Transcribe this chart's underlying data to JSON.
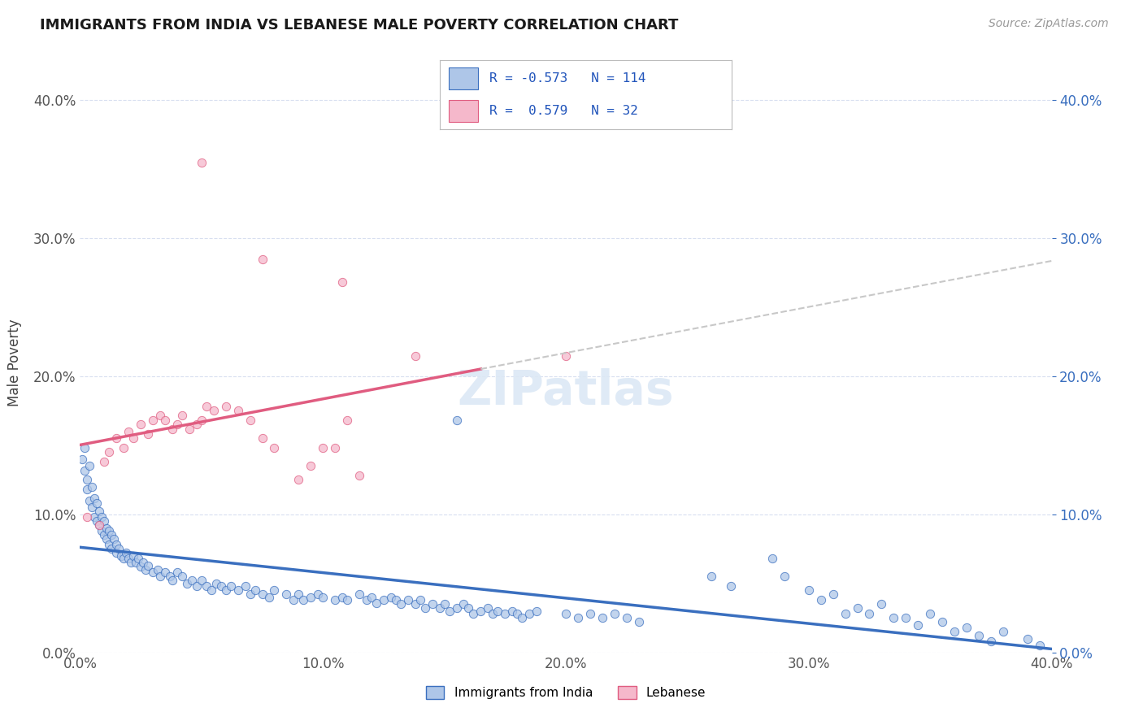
{
  "title": "IMMIGRANTS FROM INDIA VS LEBANESE MALE POVERTY CORRELATION CHART",
  "source": "Source: ZipAtlas.com",
  "ylabel": "Male Poverty",
  "legend_label_1": "Immigrants from India",
  "legend_label_2": "Lebanese",
  "r1": -0.573,
  "n1": 114,
  "r2": 0.579,
  "n2": 32,
  "color_india": "#aec6e8",
  "color_lebanon": "#f5b8cb",
  "line_color_india": "#3a6fbf",
  "line_color_lebanon": "#e05c80",
  "line_color_dashed": "#c8c8c8",
  "background_color": "#ffffff",
  "grid_color": "#d8dff0",
  "xlim": [
    0.0,
    0.4
  ],
  "ylim": [
    0.0,
    0.42
  ],
  "india_scatter": [
    [
      0.001,
      0.14
    ],
    [
      0.002,
      0.148
    ],
    [
      0.002,
      0.132
    ],
    [
      0.003,
      0.125
    ],
    [
      0.003,
      0.118
    ],
    [
      0.004,
      0.135
    ],
    [
      0.004,
      0.11
    ],
    [
      0.005,
      0.12
    ],
    [
      0.005,
      0.105
    ],
    [
      0.006,
      0.112
    ],
    [
      0.006,
      0.098
    ],
    [
      0.007,
      0.108
    ],
    [
      0.007,
      0.095
    ],
    [
      0.008,
      0.102
    ],
    [
      0.008,
      0.092
    ],
    [
      0.009,
      0.098
    ],
    [
      0.009,
      0.088
    ],
    [
      0.01,
      0.095
    ],
    [
      0.01,
      0.085
    ],
    [
      0.011,
      0.09
    ],
    [
      0.011,
      0.082
    ],
    [
      0.012,
      0.088
    ],
    [
      0.012,
      0.078
    ],
    [
      0.013,
      0.085
    ],
    [
      0.013,
      0.075
    ],
    [
      0.014,
      0.082
    ],
    [
      0.015,
      0.078
    ],
    [
      0.015,
      0.072
    ],
    [
      0.016,
      0.075
    ],
    [
      0.017,
      0.07
    ],
    [
      0.018,
      0.068
    ],
    [
      0.019,
      0.072
    ],
    [
      0.02,
      0.068
    ],
    [
      0.021,
      0.065
    ],
    [
      0.022,
      0.07
    ],
    [
      0.023,
      0.065
    ],
    [
      0.024,
      0.068
    ],
    [
      0.025,
      0.062
    ],
    [
      0.026,
      0.065
    ],
    [
      0.027,
      0.06
    ],
    [
      0.028,
      0.063
    ],
    [
      0.03,
      0.058
    ],
    [
      0.032,
      0.06
    ],
    [
      0.033,
      0.055
    ],
    [
      0.035,
      0.058
    ],
    [
      0.037,
      0.055
    ],
    [
      0.038,
      0.052
    ],
    [
      0.04,
      0.058
    ],
    [
      0.042,
      0.055
    ],
    [
      0.044,
      0.05
    ],
    [
      0.046,
      0.052
    ],
    [
      0.048,
      0.048
    ],
    [
      0.05,
      0.052
    ],
    [
      0.052,
      0.048
    ],
    [
      0.054,
      0.045
    ],
    [
      0.056,
      0.05
    ],
    [
      0.058,
      0.048
    ],
    [
      0.06,
      0.045
    ],
    [
      0.062,
      0.048
    ],
    [
      0.065,
      0.045
    ],
    [
      0.068,
      0.048
    ],
    [
      0.07,
      0.042
    ],
    [
      0.072,
      0.045
    ],
    [
      0.075,
      0.042
    ],
    [
      0.078,
      0.04
    ],
    [
      0.08,
      0.045
    ],
    [
      0.085,
      0.042
    ],
    [
      0.088,
      0.038
    ],
    [
      0.09,
      0.042
    ],
    [
      0.092,
      0.038
    ],
    [
      0.095,
      0.04
    ],
    [
      0.098,
      0.042
    ],
    [
      0.1,
      0.04
    ],
    [
      0.105,
      0.038
    ],
    [
      0.108,
      0.04
    ],
    [
      0.11,
      0.038
    ],
    [
      0.115,
      0.042
    ],
    [
      0.118,
      0.038
    ],
    [
      0.12,
      0.04
    ],
    [
      0.122,
      0.036
    ],
    [
      0.125,
      0.038
    ],
    [
      0.128,
      0.04
    ],
    [
      0.13,
      0.038
    ],
    [
      0.132,
      0.035
    ],
    [
      0.135,
      0.038
    ],
    [
      0.138,
      0.035
    ],
    [
      0.14,
      0.038
    ],
    [
      0.142,
      0.032
    ],
    [
      0.145,
      0.035
    ],
    [
      0.148,
      0.032
    ],
    [
      0.15,
      0.035
    ],
    [
      0.152,
      0.03
    ],
    [
      0.155,
      0.032
    ],
    [
      0.158,
      0.035
    ],
    [
      0.16,
      0.032
    ],
    [
      0.162,
      0.028
    ],
    [
      0.165,
      0.03
    ],
    [
      0.168,
      0.032
    ],
    [
      0.17,
      0.028
    ],
    [
      0.172,
      0.03
    ],
    [
      0.175,
      0.028
    ],
    [
      0.178,
      0.03
    ],
    [
      0.18,
      0.028
    ],
    [
      0.182,
      0.025
    ],
    [
      0.185,
      0.028
    ],
    [
      0.188,
      0.03
    ],
    [
      0.155,
      0.168
    ],
    [
      0.2,
      0.028
    ],
    [
      0.205,
      0.025
    ],
    [
      0.21,
      0.028
    ],
    [
      0.215,
      0.025
    ],
    [
      0.22,
      0.028
    ],
    [
      0.225,
      0.025
    ],
    [
      0.23,
      0.022
    ]
  ],
  "india_scatter_right": [
    [
      0.26,
      0.055
    ],
    [
      0.268,
      0.048
    ],
    [
      0.285,
      0.068
    ],
    [
      0.29,
      0.055
    ],
    [
      0.3,
      0.045
    ],
    [
      0.305,
      0.038
    ],
    [
      0.31,
      0.042
    ],
    [
      0.315,
      0.028
    ],
    [
      0.32,
      0.032
    ],
    [
      0.325,
      0.028
    ],
    [
      0.33,
      0.035
    ],
    [
      0.335,
      0.025
    ],
    [
      0.34,
      0.025
    ],
    [
      0.345,
      0.02
    ],
    [
      0.35,
      0.028
    ],
    [
      0.355,
      0.022
    ],
    [
      0.36,
      0.015
    ],
    [
      0.365,
      0.018
    ],
    [
      0.37,
      0.012
    ],
    [
      0.375,
      0.008
    ],
    [
      0.38,
      0.015
    ],
    [
      0.39,
      0.01
    ],
    [
      0.395,
      0.005
    ]
  ],
  "lebanon_scatter": [
    [
      0.003,
      0.098
    ],
    [
      0.008,
      0.092
    ],
    [
      0.01,
      0.138
    ],
    [
      0.012,
      0.145
    ],
    [
      0.015,
      0.155
    ],
    [
      0.018,
      0.148
    ],
    [
      0.02,
      0.16
    ],
    [
      0.022,
      0.155
    ],
    [
      0.025,
      0.165
    ],
    [
      0.028,
      0.158
    ],
    [
      0.03,
      0.168
    ],
    [
      0.033,
      0.172
    ],
    [
      0.035,
      0.168
    ],
    [
      0.038,
      0.162
    ],
    [
      0.04,
      0.165
    ],
    [
      0.042,
      0.172
    ],
    [
      0.045,
      0.162
    ],
    [
      0.048,
      0.165
    ],
    [
      0.05,
      0.168
    ],
    [
      0.052,
      0.178
    ],
    [
      0.055,
      0.175
    ],
    [
      0.06,
      0.178
    ],
    [
      0.065,
      0.175
    ],
    [
      0.07,
      0.168
    ],
    [
      0.075,
      0.155
    ],
    [
      0.08,
      0.148
    ],
    [
      0.09,
      0.125
    ],
    [
      0.095,
      0.135
    ],
    [
      0.1,
      0.148
    ],
    [
      0.105,
      0.148
    ],
    [
      0.11,
      0.168
    ],
    [
      0.115,
      0.128
    ]
  ],
  "leb_outlier_high": [
    0.05,
    0.355
  ],
  "leb_outlier_mid1": [
    0.075,
    0.285
  ],
  "leb_outlier_mid2": [
    0.108,
    0.268
  ],
  "leb_outlier_mid3": [
    0.138,
    0.215
  ],
  "leb_outlier_28": [
    0.2,
    0.215
  ]
}
